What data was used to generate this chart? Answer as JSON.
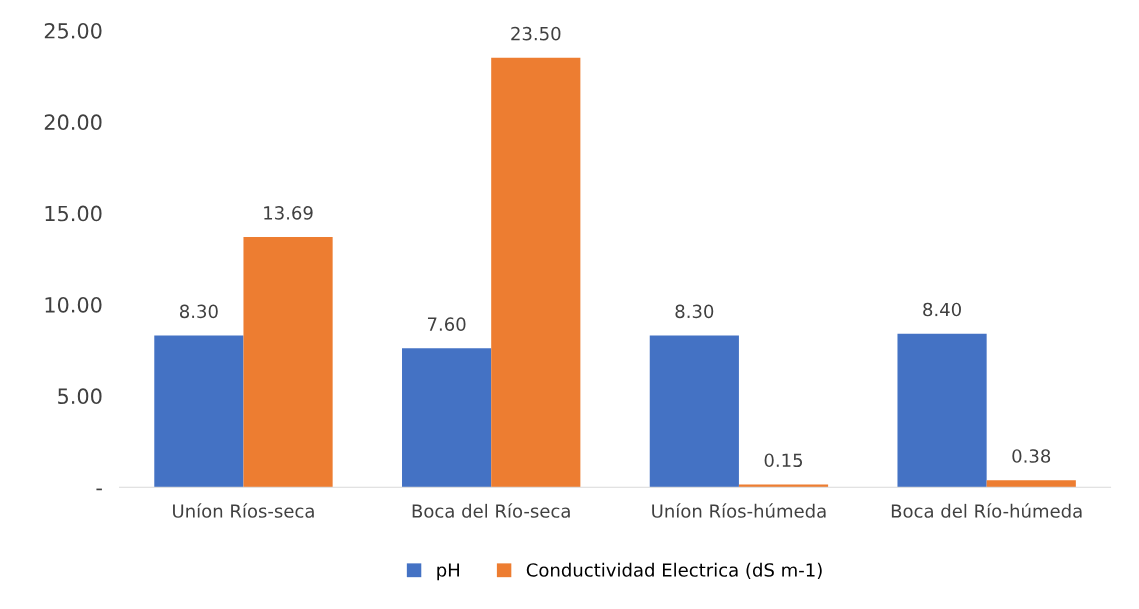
{
  "chart_data": {
    "type": "bar",
    "categories": [
      "Uníon Ríos-seca",
      "Boca del Río-seca",
      "Uníon Ríos-húmeda",
      "Boca del Río-húmeda"
    ],
    "series": [
      {
        "name": "pH",
        "color": "#4472c4",
        "values": [
          8.3,
          7.6,
          8.3,
          8.4
        ],
        "value_labels": [
          "8.30",
          "7.60",
          "8.30",
          "8.40"
        ]
      },
      {
        "name": "Conductividad Electrica (dS m-1)",
        "color": "#ed7d31",
        "values": [
          13.69,
          23.5,
          0.15,
          0.38
        ],
        "value_labels": [
          "13.69",
          "23.50",
          "0.15",
          "0.38"
        ]
      }
    ],
    "ylim": [
      0,
      25
    ],
    "yticks": [
      {
        "value": 0,
        "label": "-"
      },
      {
        "value": 5,
        "label": "5.00"
      },
      {
        "value": 10,
        "label": "10.00"
      },
      {
        "value": 15,
        "label": "15.00"
      },
      {
        "value": 20,
        "label": "20.00"
      },
      {
        "value": 25,
        "label": "25.00"
      }
    ],
    "grid": false,
    "legend": "bottom"
  }
}
